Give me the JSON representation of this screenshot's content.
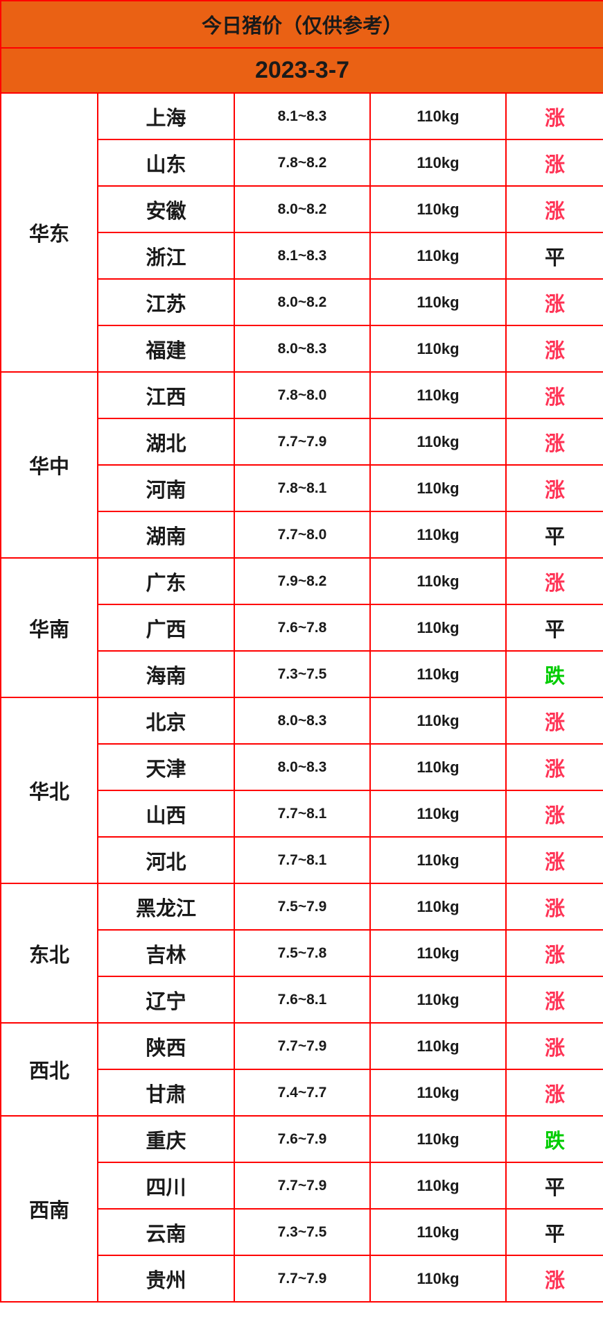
{
  "title": "今日猪价（仅供参考）",
  "date": "2023-3-7",
  "colors": {
    "header_bg": "#ea6114",
    "border": "#ff0000",
    "up": "#ff3355",
    "down": "#00cc00",
    "flat": "#1a1a1a"
  },
  "regions": [
    {
      "name": "华东",
      "rows": [
        {
          "province": "上海",
          "price": "8.1~8.3",
          "weight": "110kg",
          "trend": "涨"
        },
        {
          "province": "山东",
          "price": "7.8~8.2",
          "weight": "110kg",
          "trend": "涨"
        },
        {
          "province": "安徽",
          "price": "8.0~8.2",
          "weight": "110kg",
          "trend": "涨"
        },
        {
          "province": "浙江",
          "price": "8.1~8.3",
          "weight": "110kg",
          "trend": "平"
        },
        {
          "province": "江苏",
          "price": "8.0~8.2",
          "weight": "110kg",
          "trend": "涨"
        },
        {
          "province": "福建",
          "price": "8.0~8.3",
          "weight": "110kg",
          "trend": "涨"
        }
      ]
    },
    {
      "name": "华中",
      "rows": [
        {
          "province": "江西",
          "price": "7.8~8.0",
          "weight": "110kg",
          "trend": "涨"
        },
        {
          "province": "湖北",
          "price": "7.7~7.9",
          "weight": "110kg",
          "trend": "涨"
        },
        {
          "province": "河南",
          "price": "7.8~8.1",
          "weight": "110kg",
          "trend": "涨"
        },
        {
          "province": "湖南",
          "price": "7.7~8.0",
          "weight": "110kg",
          "trend": "平"
        }
      ]
    },
    {
      "name": "华南",
      "rows": [
        {
          "province": "广东",
          "price": "7.9~8.2",
          "weight": "110kg",
          "trend": "涨"
        },
        {
          "province": "广西",
          "price": "7.6~7.8",
          "weight": "110kg",
          "trend": "平"
        },
        {
          "province": "海南",
          "price": "7.3~7.5",
          "weight": "110kg",
          "trend": "跌"
        }
      ]
    },
    {
      "name": "华北",
      "rows": [
        {
          "province": "北京",
          "price": "8.0~8.3",
          "weight": "110kg",
          "trend": "涨"
        },
        {
          "province": "天津",
          "price": "8.0~8.3",
          "weight": "110kg",
          "trend": "涨"
        },
        {
          "province": "山西",
          "price": "7.7~8.1",
          "weight": "110kg",
          "trend": "涨"
        },
        {
          "province": "河北",
          "price": "7.7~8.1",
          "weight": "110kg",
          "trend": "涨"
        }
      ]
    },
    {
      "name": "东北",
      "rows": [
        {
          "province": "黑龙江",
          "price": "7.5~7.9",
          "weight": "110kg",
          "trend": "涨"
        },
        {
          "province": "吉林",
          "price": "7.5~7.8",
          "weight": "110kg",
          "trend": "涨"
        },
        {
          "province": "辽宁",
          "price": "7.6~8.1",
          "weight": "110kg",
          "trend": "涨"
        }
      ]
    },
    {
      "name": "西北",
      "rows": [
        {
          "province": "陕西",
          "price": "7.7~7.9",
          "weight": "110kg",
          "trend": "涨"
        },
        {
          "province": "甘肃",
          "price": "7.4~7.7",
          "weight": "110kg",
          "trend": "涨"
        }
      ]
    },
    {
      "name": "西南",
      "rows": [
        {
          "province": "重庆",
          "price": "7.6~7.9",
          "weight": "110kg",
          "trend": "跌"
        },
        {
          "province": "四川",
          "price": "7.7~7.9",
          "weight": "110kg",
          "trend": "平"
        },
        {
          "province": "云南",
          "price": "7.3~7.5",
          "weight": "110kg",
          "trend": "平"
        },
        {
          "province": "贵州",
          "price": "7.7~7.9",
          "weight": "110kg",
          "trend": "涨"
        }
      ]
    }
  ]
}
